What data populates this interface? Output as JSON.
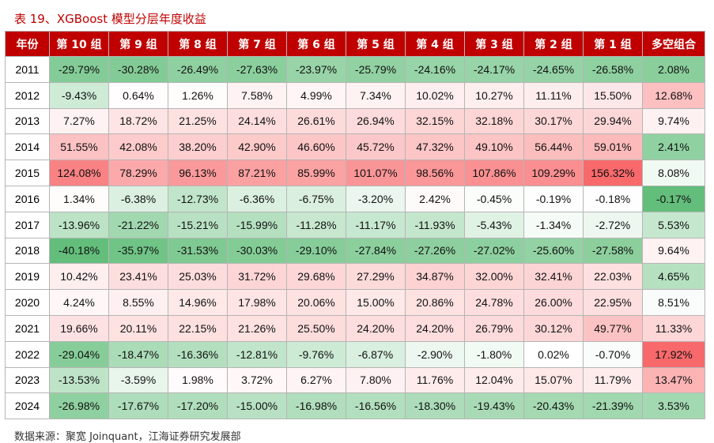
{
  "caption": "表 19、XGBoost 模型分层年度收益",
  "headers": [
    "年份",
    "第 10 组",
    "第 9 组",
    "第 8 组",
    "第 7 组",
    "第 6 组",
    "第 5 组",
    "第 4 组",
    "第 3 组",
    "第 2 组",
    "第 1 组",
    "多空组合"
  ],
  "rows": [
    {
      "year": "2011",
      "cells": [
        "-29.79%",
        "-30.28%",
        "-26.49%",
        "-27.63%",
        "-23.97%",
        "-25.79%",
        "-24.16%",
        "-24.17%",
        "-24.65%",
        "-26.58%",
        "2.08%"
      ]
    },
    {
      "year": "2012",
      "cells": [
        "-9.43%",
        "0.64%",
        "1.26%",
        "7.58%",
        "4.99%",
        "7.34%",
        "10.02%",
        "10.27%",
        "11.11%",
        "15.50%",
        "12.68%"
      ]
    },
    {
      "year": "2013",
      "cells": [
        "7.27%",
        "18.72%",
        "21.25%",
        "24.14%",
        "26.61%",
        "26.94%",
        "32.15%",
        "32.18%",
        "30.17%",
        "29.94%",
        "9.74%"
      ]
    },
    {
      "year": "2014",
      "cells": [
        "51.55%",
        "42.08%",
        "38.20%",
        "42.90%",
        "46.60%",
        "45.72%",
        "47.32%",
        "49.10%",
        "56.44%",
        "59.01%",
        "2.41%"
      ]
    },
    {
      "year": "2015",
      "cells": [
        "124.08%",
        "78.29%",
        "96.13%",
        "87.21%",
        "85.99%",
        "101.07%",
        "98.56%",
        "107.86%",
        "109.29%",
        "156.32%",
        "8.08%"
      ]
    },
    {
      "year": "2016",
      "cells": [
        "1.34%",
        "-6.38%",
        "-12.73%",
        "-6.36%",
        "-6.75%",
        "-3.20%",
        "2.42%",
        "-0.45%",
        "-0.19%",
        "-0.18%",
        "-0.17%"
      ]
    },
    {
      "year": "2017",
      "cells": [
        "-13.96%",
        "-21.22%",
        "-15.21%",
        "-15.99%",
        "-11.28%",
        "-11.17%",
        "-11.93%",
        "-5.43%",
        "-1.34%",
        "-2.72%",
        "5.53%"
      ]
    },
    {
      "year": "2018",
      "cells": [
        "-40.18%",
        "-35.97%",
        "-31.53%",
        "-30.03%",
        "-29.10%",
        "-27.84%",
        "-27.26%",
        "-27.02%",
        "-25.60%",
        "-27.58%",
        "9.64%"
      ]
    },
    {
      "year": "2019",
      "cells": [
        "10.42%",
        "23.41%",
        "25.03%",
        "31.72%",
        "29.68%",
        "27.29%",
        "34.87%",
        "32.00%",
        "32.41%",
        "22.03%",
        "4.65%"
      ]
    },
    {
      "year": "2020",
      "cells": [
        "4.24%",
        "8.55%",
        "14.96%",
        "17.98%",
        "20.06%",
        "15.00%",
        "20.86%",
        "24.78%",
        "26.00%",
        "22.95%",
        "8.51%"
      ]
    },
    {
      "year": "2021",
      "cells": [
        "19.66%",
        "20.11%",
        "22.15%",
        "21.26%",
        "25.50%",
        "24.20%",
        "24.20%",
        "26.79%",
        "30.12%",
        "49.77%",
        "11.33%"
      ]
    },
    {
      "year": "2022",
      "cells": [
        "-29.04%",
        "-18.47%",
        "-16.36%",
        "-12.81%",
        "-9.76%",
        "-6.87%",
        "-2.90%",
        "-1.80%",
        "0.02%",
        "-0.70%",
        "17.92%"
      ]
    },
    {
      "year": "2023",
      "cells": [
        "-13.53%",
        "-3.59%",
        "1.98%",
        "3.72%",
        "6.27%",
        "7.80%",
        "11.76%",
        "12.04%",
        "15.07%",
        "11.79%",
        "13.47%"
      ]
    },
    {
      "year": "2024",
      "cells": [
        "-26.98%",
        "-17.67%",
        "-17.20%",
        "-15.00%",
        "-16.98%",
        "-16.56%",
        "-18.30%",
        "-19.43%",
        "-20.43%",
        "-21.39%",
        "3.53%"
      ]
    }
  ],
  "source": "数据来源：聚宽 Joinquant，江海证券研究发展部",
  "colors": {
    "header_bg": "#c00000",
    "header_text": "#ffffff",
    "positive_max": "#f8696b",
    "negative_max": "#63be7b",
    "neutral": "#ffffff"
  }
}
